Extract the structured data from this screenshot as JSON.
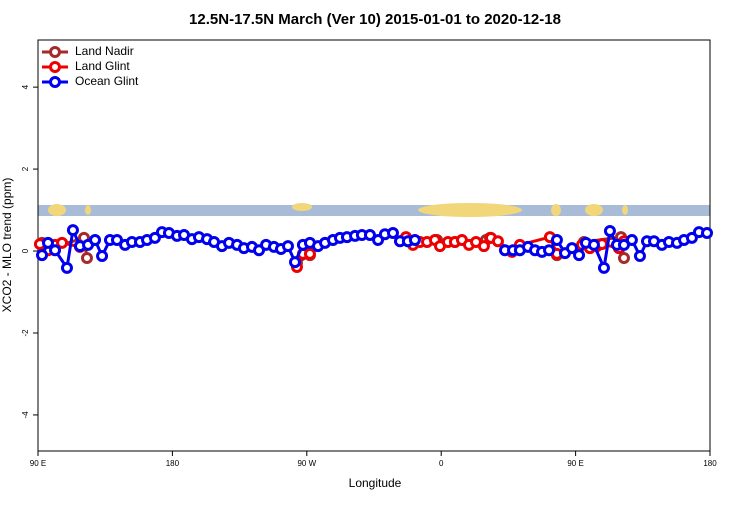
{
  "chart_data": {
    "type": "line",
    "title": "12.5N-17.5N March (Ver 10)   2015-01-01 to 2020-12-18",
    "x_label": "Longitude",
    "y_label": "XCO2 - MLO trend (ppm)",
    "xlim": [
      90,
      540
    ],
    "xticks": [
      {
        "value": 90,
        "label": "90 E"
      },
      180,
      {
        "value": 270,
        "label": "90 W"
      },
      {
        "value": 360,
        "label": "0"
      },
      {
        "value": 450,
        "label": "90 E"
      },
      {
        "value": 540,
        "label": "180"
      }
    ],
    "ylim": [
      -4.88,
      5.15
    ],
    "yticks": [
      -4,
      -2,
      0,
      2,
      4
    ],
    "legend": "top-left",
    "series": [
      {
        "name": "Land Nadir",
        "color": "#a52a2a",
        "x": [
          92.7,
          98.0,
          120.8,
          122.8,
          263.4,
          272.1,
          357.2,
          369.2,
          390.0,
          392.7,
          437.5,
          455.6,
          480.4,
          482.4
        ],
        "values": [
          0.2,
          0.07,
          0.32,
          -0.17,
          -0.29,
          -0.1,
          0.27,
          0.22,
          0.27,
          0.32,
          -0.1,
          0.22,
          0.34,
          -0.17
        ]
      },
      {
        "name": "Land Glint",
        "color": "#ee0000",
        "x": [
          91.3,
          96.7,
          101.4,
          106.1,
          118.1,
          263.4,
          267.4,
          272.1,
          336.4,
          341.1,
          345.8,
          350.5,
          355.8,
          359.2,
          364.5,
          369.2,
          373.9,
          378.6,
          383.3,
          388.6,
          393.3,
          398.0,
          407.4,
          412.7,
          432.8,
          437.5,
          454.3,
          459.6,
          464.3,
          467.7,
          479.0,
          482.4
        ],
        "values": [
          0.17,
          0.02,
          0.15,
          0.2,
          0.1,
          -0.39,
          -0.07,
          -0.07,
          0.34,
          0.15,
          0.22,
          0.22,
          0.27,
          0.12,
          0.22,
          0.22,
          0.27,
          0.15,
          0.22,
          0.12,
          0.32,
          0.24,
          -0.02,
          0.15,
          0.34,
          -0.07,
          0.15,
          0.07,
          0.12,
          0.17,
          0.07,
          0.24
        ]
      },
      {
        "name": "Ocean Glint",
        "color": "#0000ee",
        "x": [
          92.7,
          96.7,
          101.4,
          109.4,
          113.4,
          118.1,
          123.5,
          128.2,
          132.9,
          138.2,
          142.9,
          148.3,
          152.9,
          158.3,
          163.0,
          168.3,
          173.0,
          177.7,
          183.1,
          187.8,
          193.1,
          197.8,
          203.2,
          207.9,
          213.2,
          217.9,
          223.3,
          227.9,
          233.3,
          238.0,
          242.7,
          248.0,
          252.7,
          257.4,
          262.1,
          267.4,
          272.1,
          277.5,
          282.2,
          287.5,
          292.2,
          296.9,
          302.3,
          306.9,
          312.3,
          317.7,
          322.3,
          327.7,
          332.4,
          337.7,
          342.4,
          402.7,
          408.1,
          412.7,
          418.1,
          422.8,
          427.5,
          432.2,
          437.5,
          442.9,
          447.6,
          452.3,
          456.9,
          462.3,
          469.0,
          473.0,
          477.7,
          482.4,
          487.7,
          493.1,
          497.8,
          502.5,
          507.8,
          512.5,
          517.9,
          522.6,
          527.9,
          532.6,
          538.0
        ],
        "values": [
          -0.1,
          0.2,
          0.02,
          -0.41,
          0.51,
          0.12,
          0.15,
          0.27,
          -0.12,
          0.27,
          0.27,
          0.15,
          0.22,
          0.22,
          0.27,
          0.32,
          0.46,
          0.44,
          0.37,
          0.39,
          0.29,
          0.34,
          0.29,
          0.22,
          0.12,
          0.2,
          0.15,
          0.07,
          0.1,
          0.02,
          0.15,
          0.1,
          0.05,
          0.12,
          -0.27,
          0.15,
          0.2,
          0.12,
          0.2,
          0.27,
          0.32,
          0.34,
          0.37,
          0.39,
          0.39,
          0.27,
          0.41,
          0.44,
          0.24,
          0.24,
          0.27,
          0.02,
          0.02,
          0.02,
          0.1,
          0.02,
          -0.02,
          0.02,
          0.27,
          -0.05,
          0.07,
          -0.1,
          0.2,
          0.15,
          -0.41,
          0.49,
          0.15,
          0.15,
          0.27,
          -0.12,
          0.24,
          0.24,
          0.15,
          0.22,
          0.2,
          0.27,
          0.32,
          0.46,
          0.44
        ]
      }
    ]
  }
}
